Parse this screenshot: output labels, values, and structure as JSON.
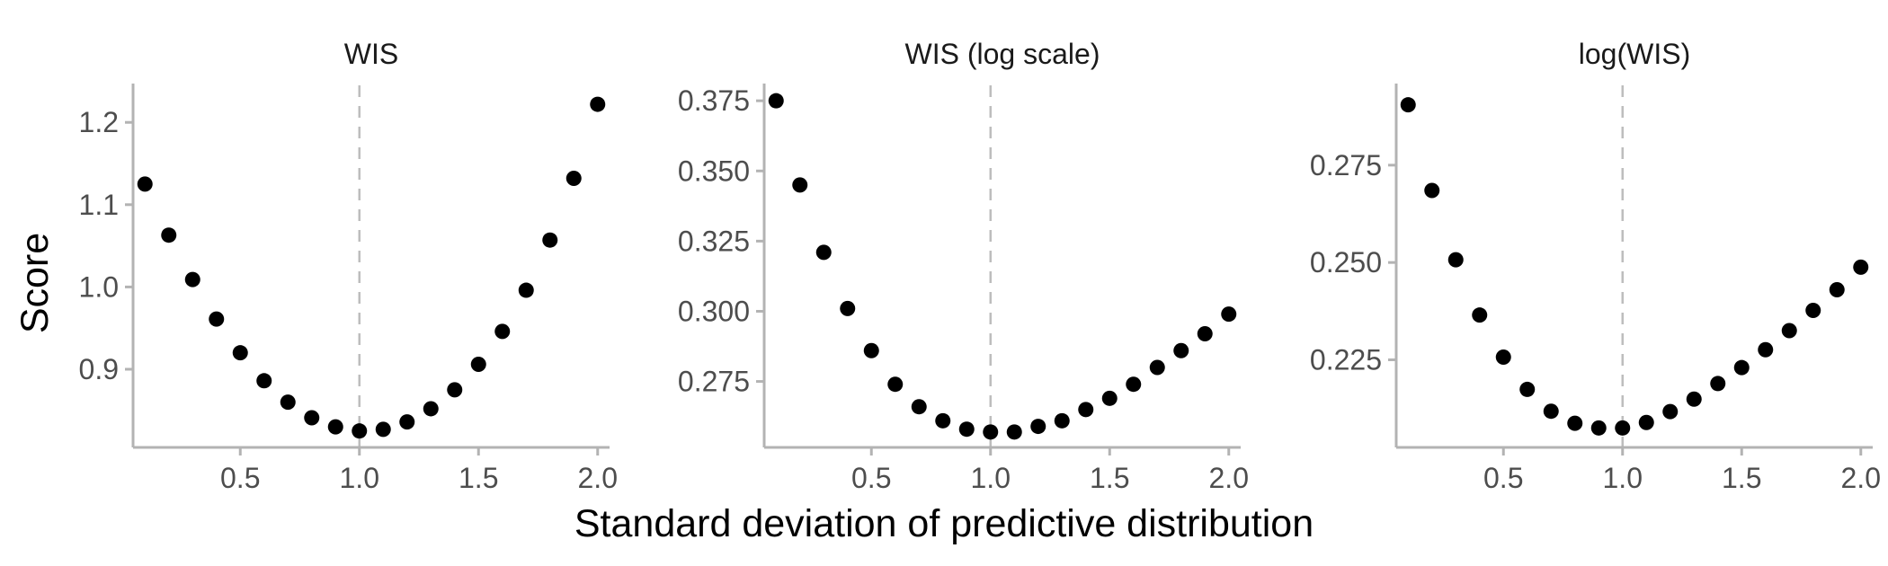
{
  "figure": {
    "ylabel": "Score",
    "xlabel": "Standard deviation of predictive distribution"
  },
  "chart_data": [
    {
      "type": "scatter",
      "title": "WIS",
      "xlabel": "Standard deviation of predictive distribution",
      "ylabel": "Score",
      "xlim": [
        0.05,
        2.05
      ],
      "ylim": [
        0.805,
        1.245
      ],
      "xticks": [
        0.5,
        1.0,
        1.5,
        2.0
      ],
      "xtick_labels": [
        "0.5",
        "1.0",
        "1.5",
        "2.0"
      ],
      "yticks": [
        0.9,
        1.0,
        1.1,
        1.2
      ],
      "ytick_labels": [
        "0.9",
        "1.0",
        "1.1",
        "1.2"
      ],
      "reference_line_x": 1.0,
      "x": [
        0.1,
        0.2,
        0.3,
        0.4,
        0.5,
        0.6,
        0.7,
        0.8,
        0.9,
        1.0,
        1.1,
        1.2,
        1.3,
        1.4,
        1.5,
        1.6,
        1.7,
        1.8,
        1.9,
        2.0
      ],
      "y": [
        1.125,
        1.063,
        1.009,
        0.961,
        0.92,
        0.886,
        0.86,
        0.841,
        0.83,
        0.825,
        0.827,
        0.836,
        0.852,
        0.875,
        0.906,
        0.946,
        0.996,
        1.057,
        1.132,
        1.222
      ]
    },
    {
      "type": "scatter",
      "title": "WIS (log scale)",
      "xlabel": "Standard deviation of predictive distribution",
      "ylabel": "Score",
      "xlim": [
        0.05,
        2.05
      ],
      "ylim": [
        0.2515,
        0.3805
      ],
      "xticks": [
        0.5,
        1.0,
        1.5,
        2.0
      ],
      "xtick_labels": [
        "0.5",
        "1.0",
        "1.5",
        "2.0"
      ],
      "yticks": [
        0.275,
        0.3,
        0.325,
        0.35,
        0.375
      ],
      "ytick_labels": [
        "0.275",
        "0.300",
        "0.325",
        "0.350",
        "0.375"
      ],
      "reference_line_x": 1.0,
      "x": [
        0.1,
        0.2,
        0.3,
        0.4,
        0.5,
        0.6,
        0.7,
        0.8,
        0.9,
        1.0,
        1.1,
        1.2,
        1.3,
        1.4,
        1.5,
        1.6,
        1.7,
        1.8,
        1.9,
        2.0
      ],
      "y": [
        0.375,
        0.345,
        0.321,
        0.301,
        0.286,
        0.274,
        0.266,
        0.261,
        0.258,
        0.257,
        0.257,
        0.259,
        0.261,
        0.265,
        0.269,
        0.274,
        0.28,
        0.286,
        0.292,
        0.299
      ]
    },
    {
      "type": "scatter",
      "title": "log(WIS)",
      "xlabel": "Standard deviation of predictive distribution",
      "ylabel": "Score",
      "xlim": [
        0.05,
        2.05
      ],
      "ylim": [
        0.2025,
        0.2955
      ],
      "xticks": [
        0.5,
        1.0,
        1.5,
        2.0
      ],
      "xtick_labels": [
        "0.5",
        "1.0",
        "1.5",
        "2.0"
      ],
      "yticks": [
        0.225,
        0.25,
        0.275
      ],
      "ytick_labels": [
        "0.225",
        "0.250",
        "0.275"
      ],
      "reference_line_x": 1.0,
      "x": [
        0.1,
        0.2,
        0.3,
        0.4,
        0.5,
        0.6,
        0.7,
        0.8,
        0.9,
        1.0,
        1.1,
        1.2,
        1.3,
        1.4,
        1.5,
        1.6,
        1.7,
        1.8,
        1.9,
        2.0
      ],
      "y": [
        0.2905,
        0.2685,
        0.2507,
        0.2365,
        0.2257,
        0.2174,
        0.2118,
        0.2087,
        0.2075,
        0.2075,
        0.2089,
        0.2117,
        0.2149,
        0.2189,
        0.223,
        0.2276,
        0.2325,
        0.2377,
        0.243,
        0.2488
      ]
    }
  ]
}
